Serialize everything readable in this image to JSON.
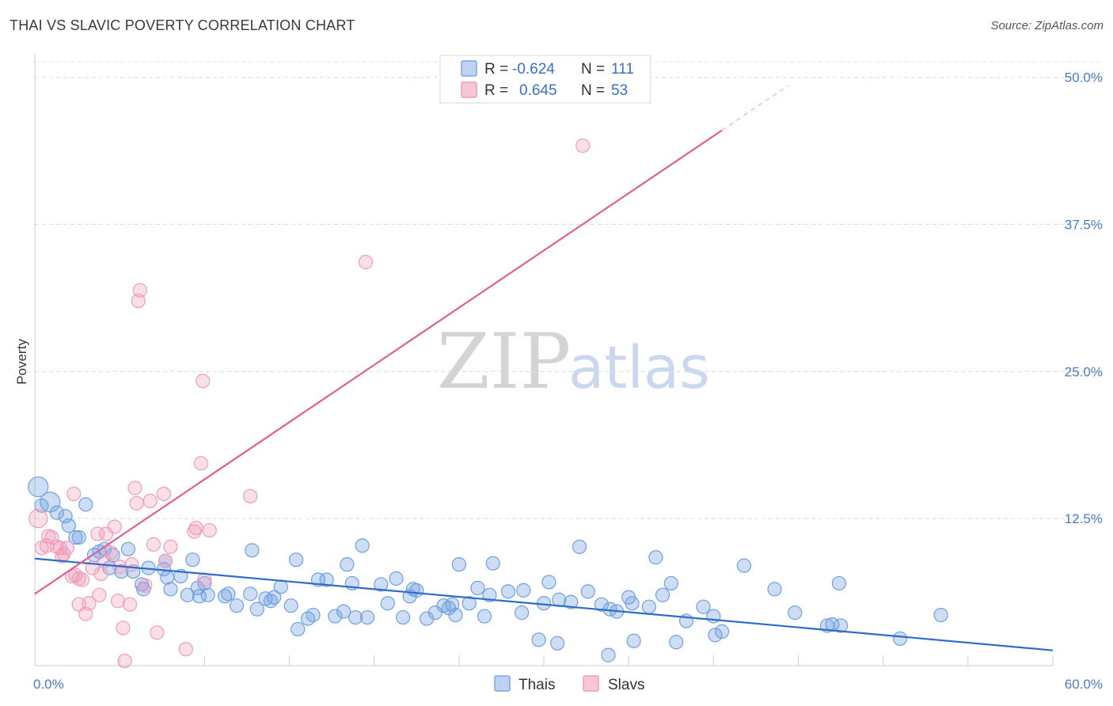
{
  "header": {
    "title": "THAI VS SLAVIC POVERTY CORRELATION CHART",
    "source": "Source: ZipAtlas.com"
  },
  "watermark": {
    "zip": "ZIP",
    "atlas": "atlas"
  },
  "legend": {
    "rows": [
      {
        "series": "Thais",
        "r_label": "R =",
        "r_value": "-0.624",
        "n_label": "N =",
        "n_value": "111"
      },
      {
        "series": "Slavs",
        "r_label": "R =",
        "r_value": "0.645",
        "n_label": "N =",
        "n_value": "53"
      }
    ]
  },
  "chart_data": {
    "type": "scatter",
    "title": "THAI VS SLAVIC POVERTY CORRELATION CHART",
    "xlabel": "",
    "ylabel": "Poverty",
    "xlim": [
      0,
      60
    ],
    "ylim": [
      0,
      52
    ],
    "x_ticks": [
      0,
      60
    ],
    "x_tick_labels": [
      "0.0%",
      "60.0%"
    ],
    "y_ticks": [
      12.5,
      25,
      37.5,
      50
    ],
    "y_tick_labels": [
      "12.5%",
      "25.0%",
      "37.5%",
      "50.0%"
    ],
    "grid": true,
    "legend_position": "top-center",
    "colors": {
      "Thais": "#6fa0e0",
      "Slavs": "#f19bbb",
      "Thais_line": "#2f6cc9",
      "Slavs_line": "#e0608f"
    },
    "series": [
      {
        "name": "Thais",
        "trend": {
          "x": [
            0,
            60
          ],
          "y": [
            9.1,
            1.3
          ]
        },
        "points": [
          [
            0.2,
            15.2
          ],
          [
            0.9,
            13.9
          ],
          [
            1.3,
            13.0
          ],
          [
            1.8,
            12.7
          ],
          [
            2.0,
            11.9
          ],
          [
            3.0,
            13.7
          ],
          [
            2.4,
            10.9
          ],
          [
            2.6,
            10.9
          ],
          [
            3.8,
            9.7
          ],
          [
            4.1,
            9.9
          ],
          [
            3.5,
            9.4
          ],
          [
            4.6,
            9.4
          ],
          [
            5.5,
            9.9
          ],
          [
            4.4,
            8.3
          ],
          [
            5.1,
            8.0
          ],
          [
            5.8,
            8.0
          ],
          [
            6.7,
            8.3
          ],
          [
            7.6,
            8.2
          ],
          [
            7.7,
            8.9
          ],
          [
            9.3,
            9.0
          ],
          [
            6.3,
            6.9
          ],
          [
            6.4,
            6.5
          ],
          [
            7.8,
            7.5
          ],
          [
            8.0,
            6.5
          ],
          [
            8.6,
            7.6
          ],
          [
            9.0,
            6.0
          ],
          [
            9.6,
            6.6
          ],
          [
            10.0,
            7.0
          ],
          [
            10.2,
            6.0
          ],
          [
            11.2,
            5.9
          ],
          [
            11.4,
            6.1
          ],
          [
            11.9,
            5.1
          ],
          [
            12.7,
            6.1
          ],
          [
            12.8,
            9.8
          ],
          [
            13.1,
            4.8
          ],
          [
            13.6,
            5.7
          ],
          [
            14.1,
            5.8
          ],
          [
            14.5,
            6.7
          ],
          [
            15.1,
            5.1
          ],
          [
            15.5,
            3.1
          ],
          [
            15.4,
            9.0
          ],
          [
            16.1,
            4.0
          ],
          [
            16.4,
            4.3
          ],
          [
            16.7,
            7.3
          ],
          [
            17.2,
            7.3
          ],
          [
            17.7,
            4.2
          ],
          [
            18.2,
            4.6
          ],
          [
            18.4,
            8.6
          ],
          [
            18.9,
            4.1
          ],
          [
            19.6,
            4.1
          ],
          [
            19.3,
            10.2
          ],
          [
            20.4,
            6.9
          ],
          [
            20.8,
            5.3
          ],
          [
            21.3,
            7.4
          ],
          [
            21.7,
            4.1
          ],
          [
            22.1,
            5.9
          ],
          [
            22.5,
            6.4
          ],
          [
            23.1,
            4.0
          ],
          [
            23.6,
            4.5
          ],
          [
            24.1,
            5.1
          ],
          [
            24.4,
            4.9
          ],
          [
            24.8,
            4.3
          ],
          [
            25.0,
            8.6
          ],
          [
            25.6,
            5.3
          ],
          [
            26.1,
            6.6
          ],
          [
            26.5,
            4.2
          ],
          [
            26.8,
            6.0
          ],
          [
            27.0,
            8.7
          ],
          [
            27.9,
            6.3
          ],
          [
            28.7,
            4.5
          ],
          [
            28.8,
            6.4
          ],
          [
            29.7,
            2.2
          ],
          [
            30.0,
            5.3
          ],
          [
            30.3,
            7.1
          ],
          [
            30.8,
            1.9
          ],
          [
            31.6,
            5.4
          ],
          [
            32.1,
            10.1
          ],
          [
            32.6,
            6.3
          ],
          [
            33.4,
            5.2
          ],
          [
            33.8,
            0.9
          ],
          [
            33.9,
            4.8
          ],
          [
            34.3,
            4.6
          ],
          [
            35.0,
            5.8
          ],
          [
            35.2,
            5.3
          ],
          [
            35.3,
            2.1
          ],
          [
            36.2,
            5.0
          ],
          [
            36.6,
            9.2
          ],
          [
            37.0,
            6.0
          ],
          [
            37.5,
            7.0
          ],
          [
            37.8,
            2.0
          ],
          [
            38.4,
            3.8
          ],
          [
            39.4,
            5.0
          ],
          [
            40.0,
            4.2
          ],
          [
            40.1,
            2.6
          ],
          [
            40.5,
            2.9
          ],
          [
            41.8,
            8.5
          ],
          [
            43.6,
            6.5
          ],
          [
            44.8,
            4.5
          ],
          [
            46.7,
            3.4
          ],
          [
            47.0,
            3.5
          ],
          [
            47.4,
            7.0
          ],
          [
            47.5,
            3.4
          ],
          [
            51.0,
            2.3
          ],
          [
            53.4,
            4.3
          ],
          [
            24.6,
            5.2
          ],
          [
            22.3,
            6.5
          ],
          [
            9.7,
            5.9
          ],
          [
            13.9,
            5.5
          ],
          [
            0.4,
            13.6
          ],
          [
            18.7,
            7.0
          ],
          [
            30.9,
            5.6
          ]
        ]
      },
      {
        "name": "Slavs",
        "trend": {
          "x": [
            0,
            40.5
          ],
          "y": [
            6.1,
            45.5
          ]
        },
        "trend_dashed": {
          "x": [
            40.5,
            44.4
          ],
          "y": [
            45.5,
            49.3
          ]
        },
        "points": [
          [
            0.2,
            12.5
          ],
          [
            0.4,
            10.0
          ],
          [
            0.7,
            10.2
          ],
          [
            0.8,
            11.0
          ],
          [
            1.0,
            10.9
          ],
          [
            1.3,
            10.1
          ],
          [
            1.5,
            10.0
          ],
          [
            1.7,
            9.5
          ],
          [
            1.9,
            10.0
          ],
          [
            1.6,
            9.3
          ],
          [
            2.2,
            7.6
          ],
          [
            2.4,
            7.7
          ],
          [
            2.6,
            7.4
          ],
          [
            2.8,
            7.3
          ],
          [
            3.0,
            4.4
          ],
          [
            3.2,
            5.3
          ],
          [
            2.6,
            5.2
          ],
          [
            3.4,
            8.3
          ],
          [
            3.7,
            11.2
          ],
          [
            3.8,
            6.0
          ],
          [
            4.2,
            11.2
          ],
          [
            4.5,
            9.6
          ],
          [
            4.1,
            8.9
          ],
          [
            4.7,
            11.8
          ],
          [
            5.0,
            8.4
          ],
          [
            5.2,
            3.2
          ],
          [
            5.6,
            5.2
          ],
          [
            5.7,
            8.6
          ],
          [
            5.9,
            15.1
          ],
          [
            6.0,
            13.8
          ],
          [
            5.3,
            0.4
          ],
          [
            6.1,
            31.0
          ],
          [
            6.2,
            31.9
          ],
          [
            6.5,
            6.8
          ],
          [
            6.8,
            14.0
          ],
          [
            7.0,
            10.3
          ],
          [
            7.2,
            2.8
          ],
          [
            7.6,
            14.6
          ],
          [
            7.7,
            8.9
          ],
          [
            8.0,
            10.1
          ],
          [
            8.9,
            1.4
          ],
          [
            9.4,
            11.4
          ],
          [
            9.5,
            11.7
          ],
          [
            9.8,
            17.2
          ],
          [
            9.9,
            24.2
          ],
          [
            10.0,
            7.3
          ],
          [
            10.3,
            11.5
          ],
          [
            12.7,
            14.4
          ],
          [
            19.5,
            34.3
          ],
          [
            32.3,
            44.2
          ],
          [
            2.3,
            14.6
          ],
          [
            3.9,
            7.8
          ],
          [
            4.9,
            5.5
          ]
        ]
      }
    ]
  }
}
